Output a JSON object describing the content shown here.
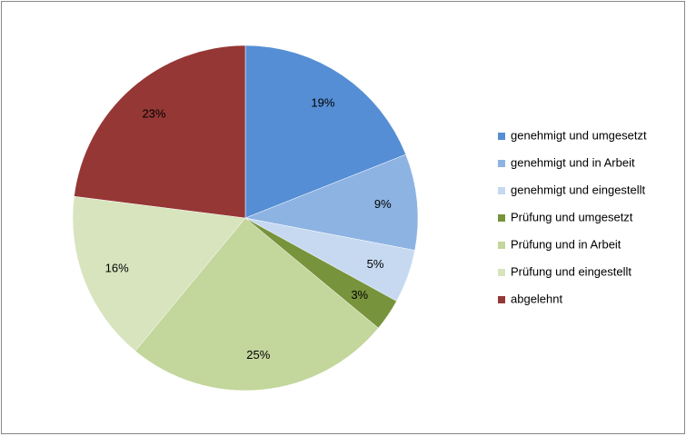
{
  "chart_data": {
    "type": "pie",
    "categories": [
      "genehmigt und umgesetzt",
      "genehmigt und in Arbeit",
      "genehmigt und eingestellt",
      "Prüfung und umgesetzt",
      "Prüfung und in Arbeit",
      "Prüfung und eingestellt",
      "abgelehnt"
    ],
    "values": [
      19,
      9,
      5,
      3,
      25,
      16,
      23
    ],
    "value_labels": [
      "19%",
      "9%",
      "5%",
      "3%",
      "25%",
      "16%",
      "23%"
    ],
    "colors": [
      "#558ed5",
      "#8db3e2",
      "#c6d9f1",
      "#77933c",
      "#c3d69b",
      "#d7e4bd",
      "#953735"
    ],
    "legend": "right"
  }
}
